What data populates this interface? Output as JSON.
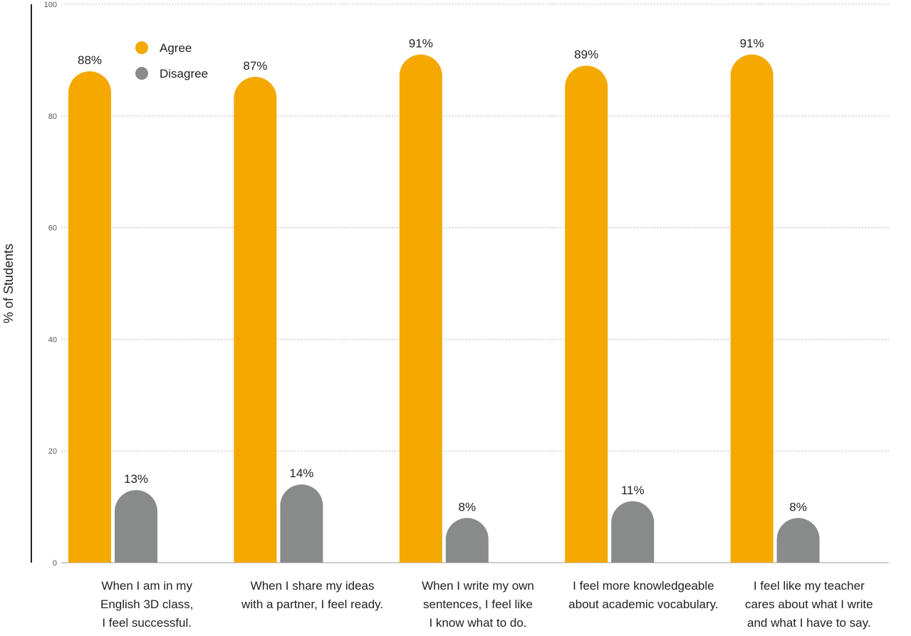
{
  "chart_data": {
    "type": "bar",
    "ylabel": "% of Students",
    "ylim": [
      0,
      100
    ],
    "yticks": [
      0,
      20,
      40,
      60,
      80,
      100
    ],
    "grid": true,
    "legend_position": "top-left",
    "categories": [
      "When I am in my\nEnglish 3D class,\nI feel successful.",
      "When I share my ideas\nwith a partner, I feel ready.",
      "When I write my own\nsentences, I feel like\nI know what to do.",
      "I feel more knowledgeable\nabout academic vocabulary.",
      "I feel like my teacher\ncares about what I write\nand what I have to say."
    ],
    "series": [
      {
        "name": "Agree",
        "color": "#F5A800",
        "values": [
          88,
          87,
          91,
          89,
          91
        ],
        "labels": [
          "88%",
          "87%",
          "91%",
          "89%",
          "91%"
        ]
      },
      {
        "name": "Disagree",
        "color": "#898B8B",
        "values": [
          13,
          14,
          8,
          11,
          8
        ],
        "labels": [
          "13%",
          "14%",
          "8%",
          "11%",
          "8%"
        ]
      }
    ]
  }
}
